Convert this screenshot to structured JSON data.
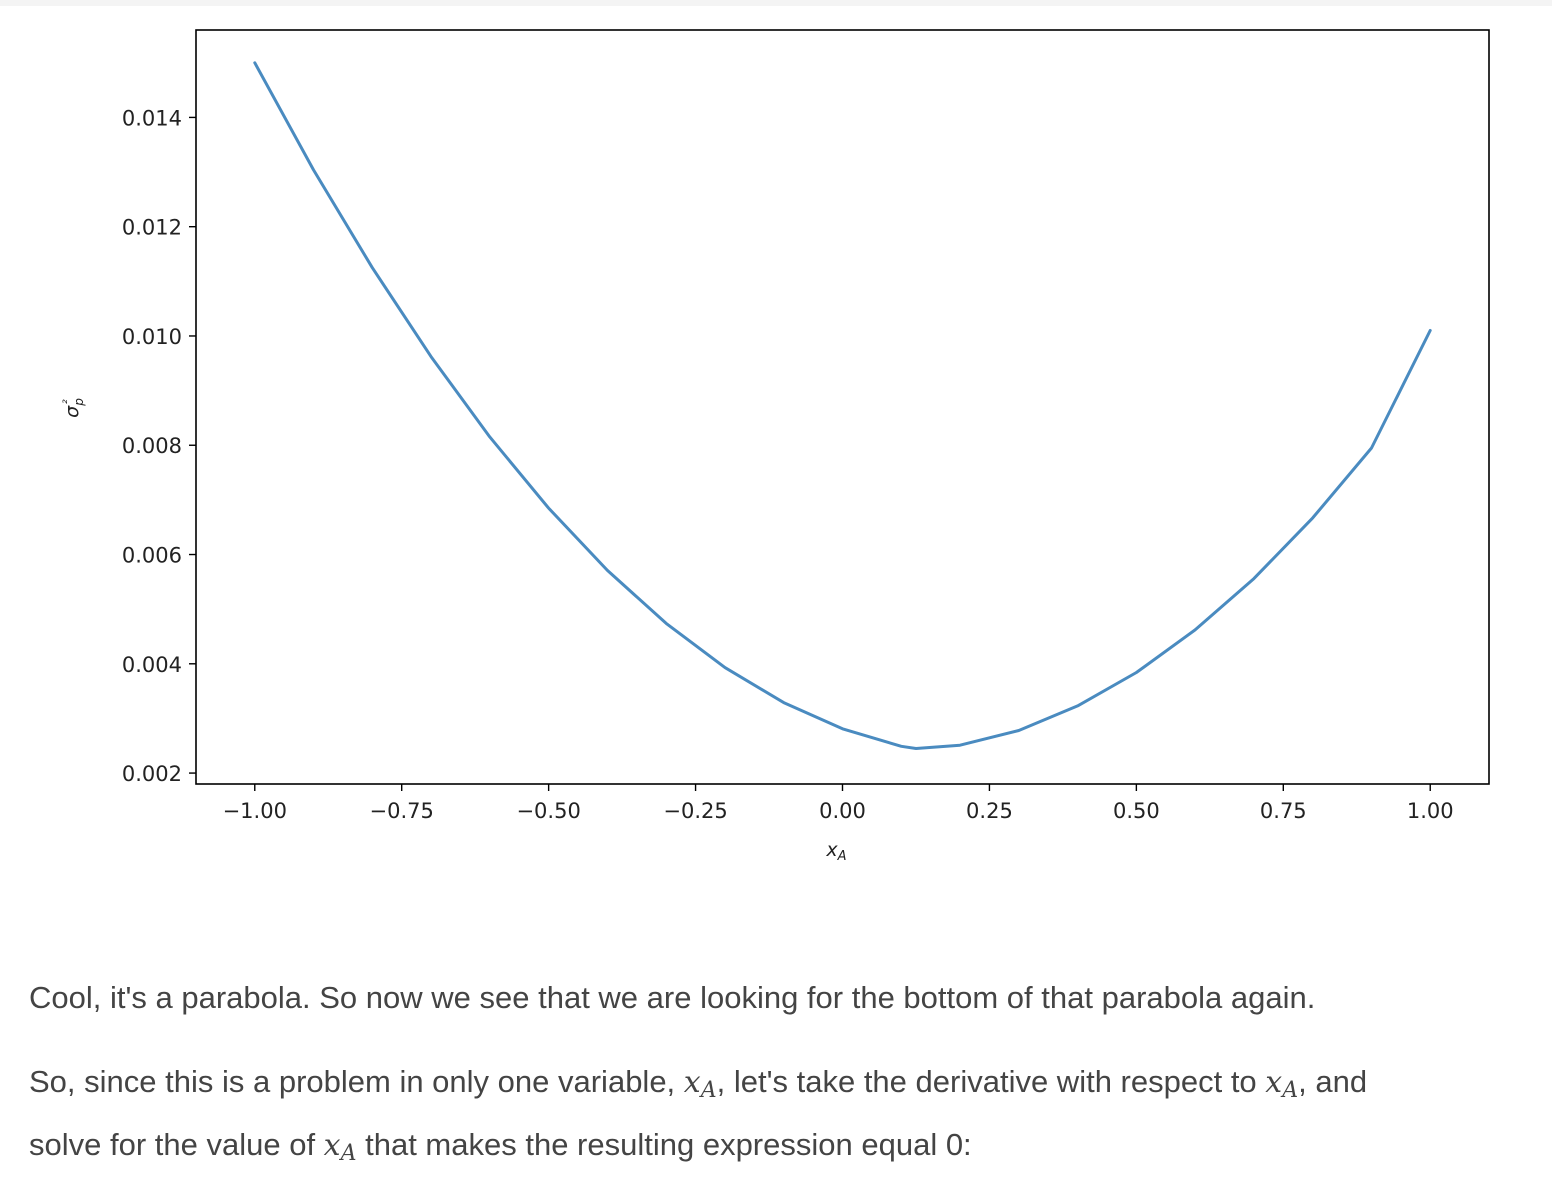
{
  "chart_data": {
    "type": "line",
    "series": [
      {
        "x": [
          -1.0,
          -0.9,
          -0.8,
          -0.7,
          -0.6,
          -0.5,
          -0.4,
          -0.3,
          -0.2,
          -0.1,
          0.0,
          0.1,
          0.125,
          0.2,
          0.3,
          0.4,
          0.5,
          0.6,
          0.7,
          0.8,
          0.9,
          1.0
        ],
        "y": [
          0.015,
          0.01304,
          0.01125,
          0.00962,
          0.00815,
          0.00685,
          0.00571,
          0.00474,
          0.00393,
          0.00329,
          0.00281,
          0.00249,
          0.00245,
          0.00251,
          0.00278,
          0.00323,
          0.00384,
          0.00462,
          0.00556,
          0.00667,
          0.00795,
          0.0101
        ]
      }
    ],
    "xlabel": "x_A",
    "ylabel": "σ_p²",
    "xlim": [
      -1.1,
      1.1
    ],
    "ylim": [
      0.0018,
      0.0156
    ],
    "xticks": [
      -1.0,
      -0.75,
      -0.5,
      -0.25,
      0.0,
      0.25,
      0.5,
      0.75,
      1.0
    ],
    "xtick_labels": [
      "−1.00",
      "−0.75",
      "−0.50",
      "−0.25",
      "0.00",
      "0.25",
      "0.50",
      "0.75",
      "1.00"
    ],
    "yticks": [
      0.002,
      0.004,
      0.006,
      0.008,
      0.01,
      0.012,
      0.014
    ],
    "ytick_labels": [
      "0.002",
      "0.004",
      "0.006",
      "0.008",
      "0.010",
      "0.012",
      "0.014"
    ],
    "grid": false,
    "line_color": "#4a8bc0"
  },
  "text": {
    "p1": "Cool, it's a parabola. So now we see that we are looking for the bottom of that parabola again.",
    "p2_a": "So, since this is a problem in only one variable, ",
    "p2_b": ", let's take the derivative with respect to ",
    "p2_c": ", and",
    "p2_d": "solve for the value of ",
    "p2_e": " that makes the resulting expression equal 0:",
    "math_var": "x",
    "math_sub": "A"
  }
}
